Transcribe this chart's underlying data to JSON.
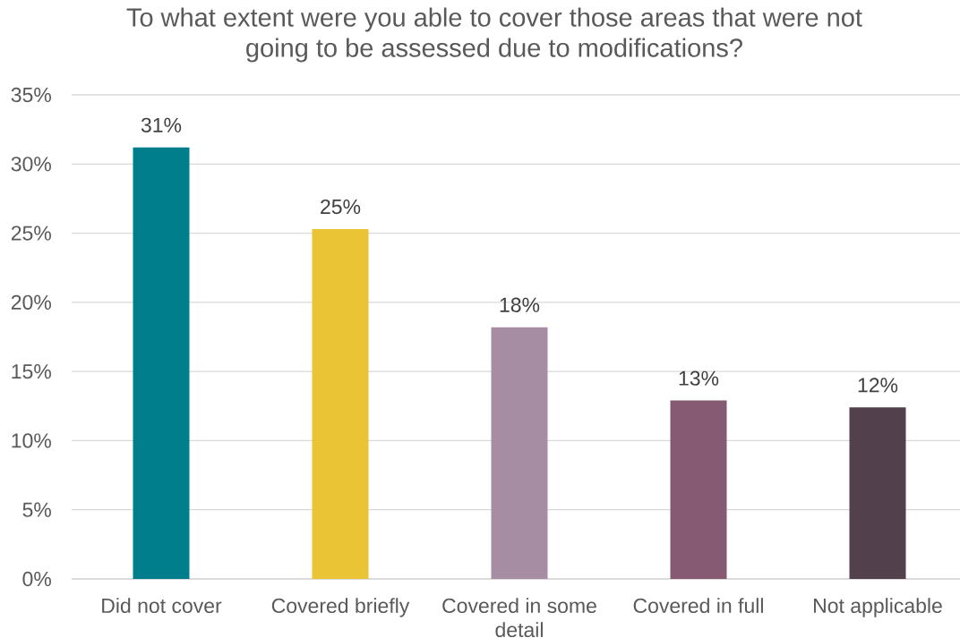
{
  "chart_data": {
    "type": "bar",
    "title": "To what extent were you able to cover those areas that were not going to be assessed due to modifications?",
    "categories": [
      "Did not cover",
      "Covered briefly",
      "Covered in some detail",
      "Covered in full",
      "Not applicable"
    ],
    "values": [
      31.2,
      25.3,
      18.2,
      12.9,
      12.4
    ],
    "colors": [
      "#007e8c",
      "#eac435",
      "#a78da4",
      "#875a73",
      "#53404d"
    ],
    "value_labels": [
      "31%",
      "25%",
      "18%",
      "13%",
      "12%"
    ],
    "ylim": [
      0,
      35
    ],
    "yticks": [
      {
        "value": 0,
        "label": "0%"
      },
      {
        "value": 5,
        "label": "5%"
      },
      {
        "value": 10,
        "label": "10%"
      },
      {
        "value": 15,
        "label": "15%"
      },
      {
        "value": 20,
        "label": "20%"
      },
      {
        "value": 25,
        "label": "25%"
      },
      {
        "value": 30,
        "label": "30%"
      },
      {
        "value": 35,
        "label": "35%"
      }
    ],
    "grid": "y"
  }
}
